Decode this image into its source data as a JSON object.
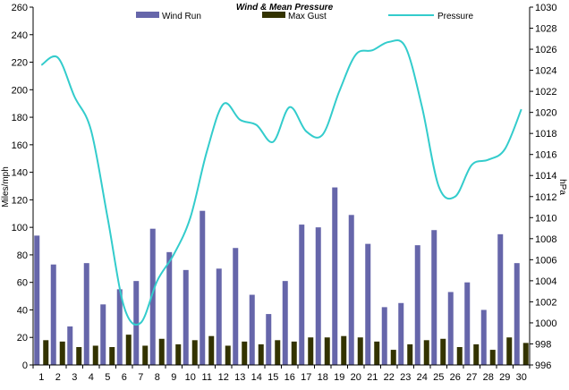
{
  "chart_data": {
    "type": "bar",
    "title": "Wind & Mean Pressure",
    "ylabel": "Miles/mph",
    "y2label": "hPa",
    "xlabel": "",
    "ylim": [
      0,
      260
    ],
    "y2lim": [
      996,
      1030
    ],
    "yticks": [
      0,
      20,
      40,
      60,
      80,
      100,
      120,
      140,
      160,
      180,
      200,
      220,
      240,
      260
    ],
    "y2ticks": [
      996,
      998,
      1000,
      1002,
      1004,
      1006,
      1008,
      1010,
      1012,
      1014,
      1016,
      1018,
      1020,
      1022,
      1024,
      1026,
      1028,
      1030
    ],
    "categories": [
      "1",
      "2",
      "3",
      "4",
      "5",
      "6",
      "7",
      "8",
      "9",
      "10",
      "11",
      "12",
      "13",
      "14",
      "15",
      "16",
      "17",
      "18",
      "19",
      "20",
      "21",
      "22",
      "23",
      "24",
      "25",
      "26",
      "27",
      "28",
      "29",
      "30"
    ],
    "grid": false,
    "legend_position": "top",
    "series": [
      {
        "name": "Wind Run",
        "type": "bar",
        "axis": "left",
        "color": "#6666aa",
        "values": [
          94,
          73,
          28,
          74,
          44,
          55,
          61,
          99,
          82,
          69,
          112,
          70,
          85,
          51,
          37,
          61,
          102,
          100,
          129,
          109,
          88,
          42,
          45,
          87,
          98,
          53,
          60,
          40,
          95,
          74
        ]
      },
      {
        "name": "Max Gust",
        "type": "bar",
        "axis": "left",
        "color": "#333300",
        "values": [
          18,
          17,
          13,
          14,
          13,
          22,
          14,
          19,
          15,
          18,
          21,
          14,
          17,
          15,
          18,
          17,
          20,
          20,
          21,
          20,
          17,
          11,
          15,
          18,
          19,
          13,
          15,
          11,
          20,
          16
        ]
      },
      {
        "name": "Pressure",
        "type": "line",
        "axis": "right",
        "color": "#33cccc",
        "values": [
          1024.5,
          1025.2,
          1021.5,
          1018.3,
          1010.0,
          1001.5,
          1000.0,
          1004.0,
          1006.5,
          1010.0,
          1016.3,
          1020.8,
          1019.3,
          1018.8,
          1017.2,
          1020.5,
          1018.2,
          1017.9,
          1022.0,
          1025.5,
          1025.9,
          1026.7,
          1026.2,
          1020.5,
          1013.0,
          1012.0,
          1015.0,
          1015.5,
          1016.5,
          1020.3
        ]
      }
    ]
  }
}
